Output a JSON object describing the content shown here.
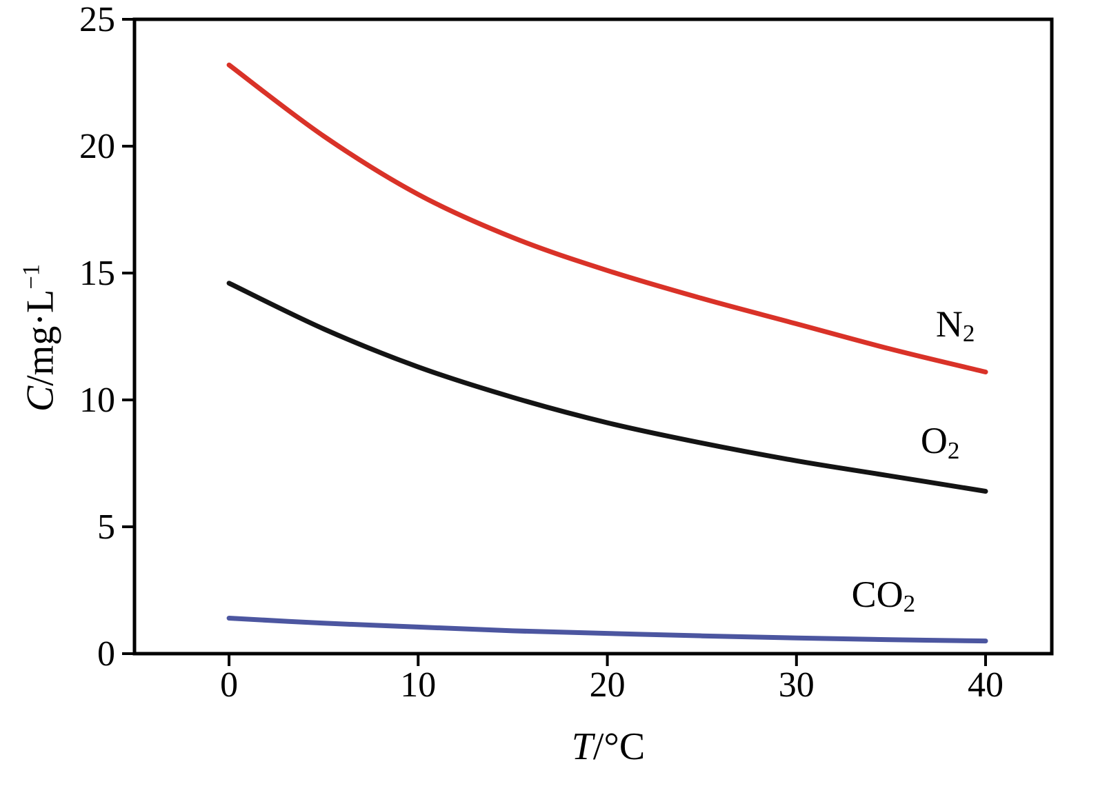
{
  "chart_data": {
    "type": "line",
    "title": "",
    "xlabel_italic": "T",
    "xlabel_rest": "/°C",
    "ylabel_italic": "C",
    "ylabel_rest": "/mg·L",
    "ylabel_sup": "−1",
    "xlim": [
      -5,
      43.5
    ],
    "ylim": [
      0,
      25
    ],
    "xticks": [
      "0",
      "10",
      "20",
      "30",
      "40"
    ],
    "xtick_values": [
      0,
      10,
      20,
      30,
      40
    ],
    "yticks": [
      "0",
      "5",
      "10",
      "15",
      "20",
      "25"
    ],
    "ytick_values": [
      0,
      5,
      10,
      15,
      20,
      25
    ],
    "grid": false,
    "legend": "inline-labels",
    "x": [
      0,
      5,
      10,
      15,
      20,
      25,
      30,
      35,
      40
    ],
    "series": [
      {
        "name": "N2",
        "label_main": "N",
        "label_sub": "2",
        "color": "#d93228",
        "values": [
          23.2,
          20.4,
          18.1,
          16.4,
          15.1,
          14.0,
          13.0,
          12.0,
          11.1
        ],
        "label_pos": {
          "x": 38.4,
          "y": 13.0
        }
      },
      {
        "name": "O2",
        "label_main": "O",
        "label_sub": "2",
        "color": "#141414",
        "values": [
          14.6,
          12.8,
          11.3,
          10.1,
          9.1,
          8.3,
          7.6,
          7.0,
          6.4
        ],
        "label_pos": {
          "x": 37.6,
          "y": 8.4
        }
      },
      {
        "name": "CO2",
        "label_main": "CO",
        "label_sub": "2",
        "color": "#4c56a0",
        "values": [
          1.4,
          1.2,
          1.05,
          0.9,
          0.8,
          0.7,
          0.62,
          0.55,
          0.5
        ],
        "label_pos": {
          "x": 34.6,
          "y": 2.35
        }
      }
    ],
    "axis_color": "#000000",
    "tick_label_font_px": 52
  }
}
